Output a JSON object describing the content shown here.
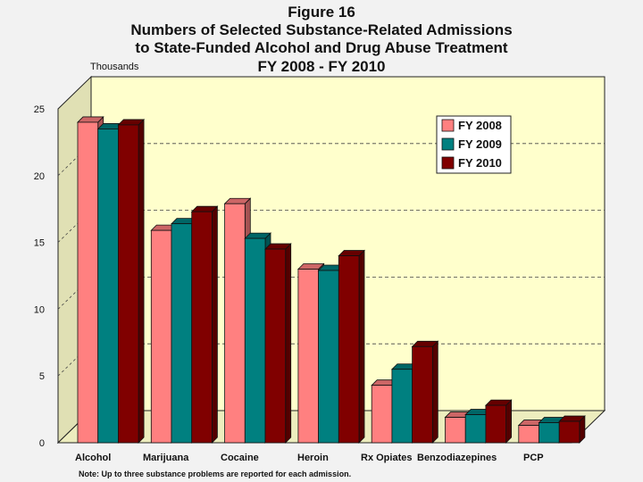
{
  "titles": {
    "line1": "Figure 16",
    "line2": "Numbers of Selected Substance-Related Admissions",
    "line3": "to State-Funded Alcohol and Drug Abuse Treatment",
    "line4": "FY 2008 - FY 2010"
  },
  "note": "Note: Up to three substance problems are reported for each admission.",
  "colors": {
    "plot_fill": "#ffffcc",
    "series": [
      "#ff8080",
      "#008080",
      "#800000"
    ]
  },
  "chart_data": {
    "type": "bar",
    "ylabel": "Thousands",
    "ylim": [
      0,
      25
    ],
    "yticks": [
      0,
      5,
      10,
      15,
      20,
      25
    ],
    "grid": true,
    "legend_position": "top-right",
    "categories": [
      "Alcohol",
      "Marijuana",
      "Cocaine",
      "Heroin",
      "Rx Opiates",
      "Benzodiazepines",
      "PCP"
    ],
    "series": [
      {
        "name": "FY 2008",
        "values": [
          24.0,
          15.9,
          17.9,
          13.0,
          4.3,
          1.9,
          1.3
        ]
      },
      {
        "name": "FY 2009",
        "values": [
          23.5,
          16.4,
          15.3,
          12.9,
          5.5,
          2.1,
          1.5
        ]
      },
      {
        "name": "FY 2010",
        "values": [
          23.8,
          17.3,
          14.5,
          14.0,
          7.2,
          2.8,
          1.6
        ]
      }
    ]
  }
}
